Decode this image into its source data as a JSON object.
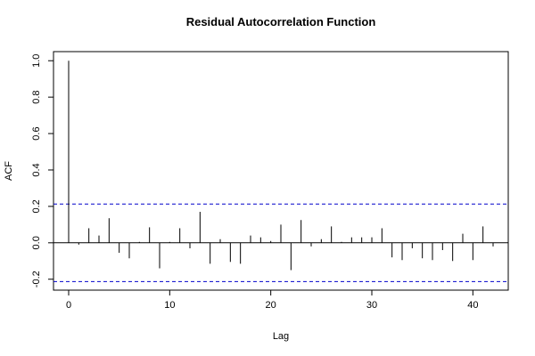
{
  "chart_data": {
    "type": "bar",
    "title": "Residual Autocorrelation Function",
    "xlabel": "Lag",
    "ylabel": "ACF",
    "xlim": [
      -1.5,
      43.5
    ],
    "ylim": [
      -0.26,
      1.05
    ],
    "xticks": [
      0,
      10,
      20,
      30,
      40
    ],
    "yticks": [
      -0.2,
      0.0,
      0.2,
      0.4,
      0.6,
      0.8,
      1.0
    ],
    "ytick_labels": [
      "-0.2",
      "0.0",
      "0.2",
      "0.4",
      "0.6",
      "0.8",
      "1.0"
    ],
    "lags": [
      0,
      1,
      2,
      3,
      4,
      5,
      6,
      7,
      8,
      9,
      10,
      11,
      12,
      13,
      14,
      15,
      16,
      17,
      18,
      19,
      20,
      21,
      22,
      23,
      24,
      25,
      26,
      27,
      28,
      29,
      30,
      31,
      32,
      33,
      34,
      35,
      36,
      37,
      38,
      39,
      40,
      41,
      42
    ],
    "values": [
      1.0,
      -0.01,
      0.08,
      0.04,
      0.135,
      -0.055,
      -0.085,
      0.005,
      0.085,
      -0.14,
      0.005,
      0.08,
      -0.03,
      0.17,
      -0.115,
      0.02,
      -0.105,
      -0.115,
      0.04,
      0.03,
      0.01,
      0.1,
      -0.15,
      0.125,
      -0.02,
      0.02,
      0.09,
      0.005,
      0.03,
      0.03,
      0.03,
      0.08,
      -0.08,
      -0.095,
      -0.03,
      -0.085,
      -0.095,
      -0.04,
      -0.1,
      0.05,
      -0.095,
      0.09,
      -0.02
    ],
    "confidence_limit": 0.213,
    "confidence_color": "#0000cc",
    "bar_color": "#000000",
    "zero_line": true,
    "grid": false,
    "legend": "none"
  }
}
